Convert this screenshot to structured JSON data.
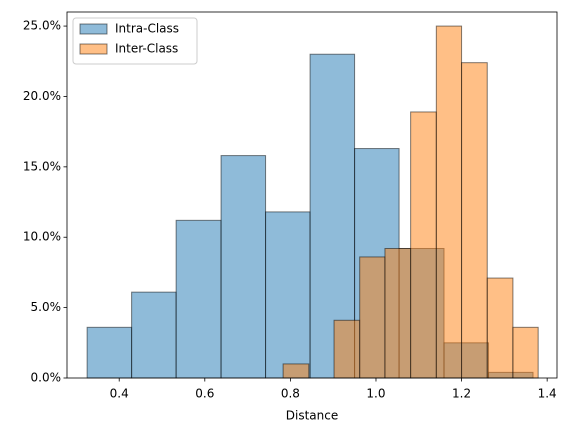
{
  "chart_data": {
    "type": "histogram",
    "xlabel": "Distance",
    "series": [
      {
        "name": "Intra-Class",
        "color": "#1f77b4",
        "bins": [
          0.325,
          0.429,
          0.533,
          0.638,
          0.742,
          0.846,
          0.95,
          1.054,
          1.159,
          1.263,
          1.367
        ],
        "values": [
          3.6,
          6.1,
          11.2,
          15.8,
          11.8,
          23.0,
          16.3,
          9.2,
          2.5,
          0.4
        ]
      },
      {
        "name": "Inter-Class",
        "color": "#ff7f0e",
        "bins": [
          0.783,
          0.843,
          0.902,
          0.962,
          1.021,
          1.081,
          1.141,
          1.2,
          1.26,
          1.32,
          1.379
        ],
        "values": [
          1.0,
          0,
          4.1,
          8.6,
          9.2,
          18.9,
          25.0,
          22.4,
          7.1,
          3.6
        ]
      }
    ],
    "xlim": [
      0.278,
      1.423
    ],
    "ylim": [
      0,
      26
    ],
    "xticks": [
      0.4,
      0.6,
      0.8,
      1.0,
      1.2,
      1.4
    ],
    "yticks": [
      {
        "value": 0,
        "label": "0.0%"
      },
      {
        "value": 5,
        "label": "5.0%"
      },
      {
        "value": 10,
        "label": "10.0%"
      },
      {
        "value": 15,
        "label": "15.0%"
      },
      {
        "value": 20,
        "label": "20.0%"
      },
      {
        "value": 25,
        "label": "25.0%"
      }
    ],
    "legend": "upper left"
  }
}
